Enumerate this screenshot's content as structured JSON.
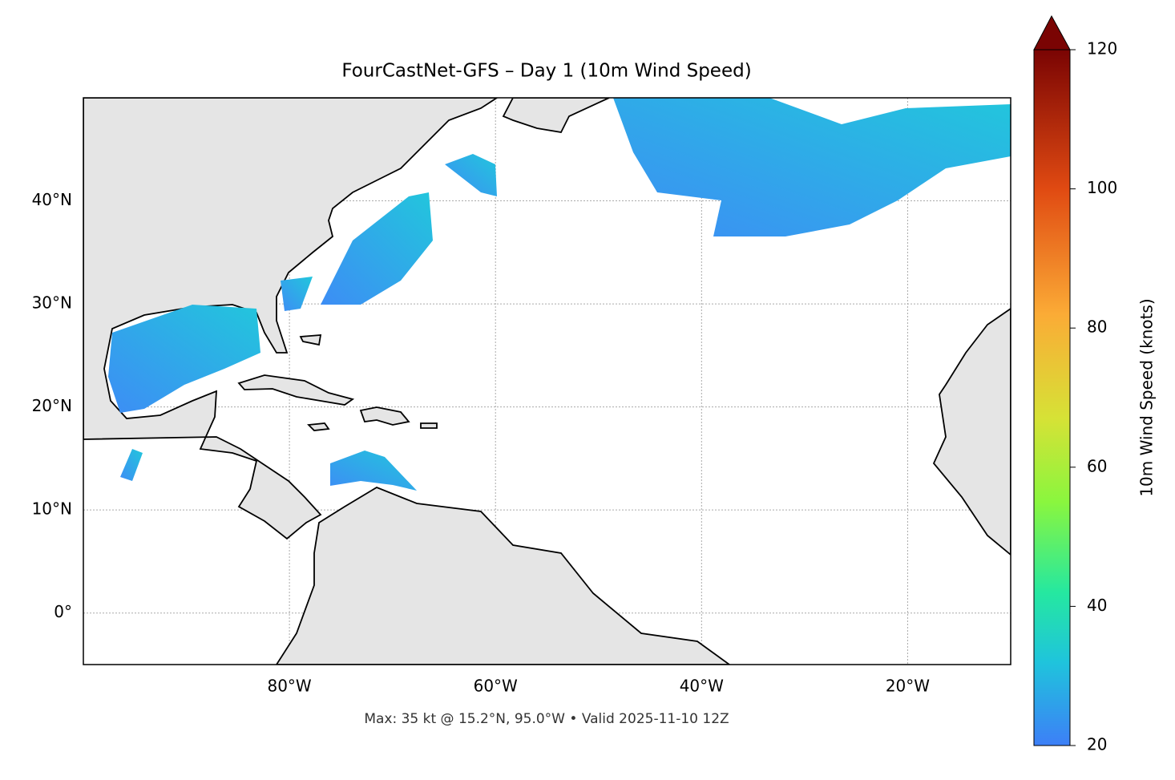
{
  "chart_data": {
    "type": "map",
    "title": "FourCastNet-GFS – Day 1 (10m Wind Speed)",
    "subtitle": "Max: 35 kt @ 15.2°N, 95.0°W • Valid 2025-11-10 12Z",
    "xlim": [
      -100,
      -10
    ],
    "ylim": [
      -5,
      50
    ],
    "xticks": [
      {
        "value": -80,
        "label": "80°W"
      },
      {
        "value": -60,
        "label": "60°W"
      },
      {
        "value": -40,
        "label": "40°W"
      },
      {
        "value": -20,
        "label": "20°W"
      }
    ],
    "yticks": [
      {
        "value": 0,
        "label": "0°"
      },
      {
        "value": 10,
        "label": "10°N"
      },
      {
        "value": 20,
        "label": "20°N"
      },
      {
        "value": 30,
        "label": "30°N"
      },
      {
        "value": 40,
        "label": "40°N"
      }
    ],
    "grid": true,
    "colorbar": {
      "label": "10m Wind Speed (knots)",
      "lim": [
        20,
        120
      ],
      "ticks": [
        20,
        40,
        60,
        80,
        100,
        120
      ]
    }
  }
}
